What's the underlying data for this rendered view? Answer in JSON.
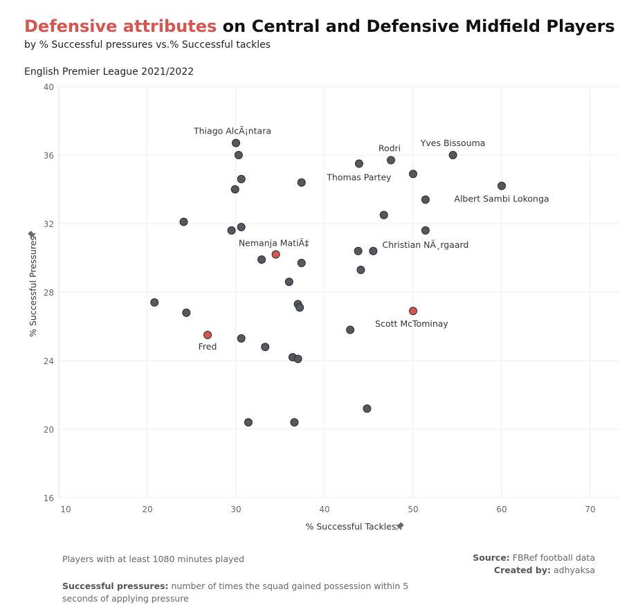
{
  "header": {
    "title_highlight": "Defensive attributes",
    "title_rest": " on Central and Defensive Midfield Players",
    "subtitle": "by % Successful pressures vs.% Successful tackles",
    "league": "English Premier League 2021/2022"
  },
  "footer": {
    "note1": "Players with at least 1080 minutes played",
    "note2_label": "Successful pressures:",
    "note2_text": " number of times the squad gained possession within 5 seconds of applying pressure",
    "source_label": "Source:",
    "source_text": " FBRef football data",
    "created_label": "Created by:",
    "created_text": " adhyaksa"
  },
  "colors": {
    "highlight": "#d9534f",
    "point": "#55585e",
    "grid": "#ececec",
    "axis_text": "#666666"
  },
  "chart_data": {
    "type": "scatter",
    "xlabel": "% Successful Tackles",
    "ylabel": "% Successful Pressures",
    "xlim": [
      10,
      70
    ],
    "ylim": [
      16,
      40
    ],
    "xticks": [
      10,
      20,
      30,
      40,
      50,
      60,
      70
    ],
    "yticks": [
      16,
      20,
      24,
      28,
      32,
      36,
      40
    ],
    "grid": true,
    "points": [
      {
        "x": 30.0,
        "y": 36.7,
        "label": "Thiago AlcÃ¡ntara",
        "highlight": false
      },
      {
        "x": 30.3,
        "y": 36.0,
        "label": "",
        "highlight": false
      },
      {
        "x": 30.6,
        "y": 34.6,
        "label": "",
        "highlight": false
      },
      {
        "x": 29.9,
        "y": 34.0,
        "label": "",
        "highlight": false
      },
      {
        "x": 37.4,
        "y": 34.4,
        "label": "",
        "highlight": false
      },
      {
        "x": 43.9,
        "y": 35.5,
        "label": "Thomas Partey",
        "highlight": false
      },
      {
        "x": 47.5,
        "y": 35.7,
        "label": "Rodri",
        "highlight": false
      },
      {
        "x": 50.0,
        "y": 34.9,
        "label": "",
        "highlight": false
      },
      {
        "x": 54.5,
        "y": 36.0,
        "label": "Yves Bissouma",
        "highlight": false
      },
      {
        "x": 60.0,
        "y": 34.2,
        "label": "Albert Sambi Lokonga",
        "highlight": false
      },
      {
        "x": 51.4,
        "y": 33.4,
        "label": "",
        "highlight": false
      },
      {
        "x": 46.7,
        "y": 32.5,
        "label": "",
        "highlight": false
      },
      {
        "x": 51.4,
        "y": 31.6,
        "label": "Christian NÃ¸rgaard",
        "highlight": false
      },
      {
        "x": 24.1,
        "y": 32.1,
        "label": "",
        "highlight": false
      },
      {
        "x": 29.5,
        "y": 31.6,
        "label": "",
        "highlight": false
      },
      {
        "x": 30.6,
        "y": 31.8,
        "label": "",
        "highlight": false
      },
      {
        "x": 34.5,
        "y": 30.2,
        "label": "Nemanja MatiÄ‡",
        "highlight": true
      },
      {
        "x": 32.9,
        "y": 29.9,
        "label": "",
        "highlight": false
      },
      {
        "x": 37.4,
        "y": 29.7,
        "label": "",
        "highlight": false
      },
      {
        "x": 43.8,
        "y": 30.4,
        "label": "",
        "highlight": false
      },
      {
        "x": 45.5,
        "y": 30.4,
        "label": "",
        "highlight": false
      },
      {
        "x": 44.1,
        "y": 29.3,
        "label": "",
        "highlight": false
      },
      {
        "x": 36.0,
        "y": 28.6,
        "label": "",
        "highlight": false
      },
      {
        "x": 37.0,
        "y": 27.3,
        "label": "",
        "highlight": false
      },
      {
        "x": 37.2,
        "y": 27.1,
        "label": "",
        "highlight": false
      },
      {
        "x": 20.8,
        "y": 27.4,
        "label": "",
        "highlight": false
      },
      {
        "x": 24.4,
        "y": 26.8,
        "label": "",
        "highlight": false
      },
      {
        "x": 50.0,
        "y": 26.9,
        "label": "Scott McTominay",
        "highlight": true
      },
      {
        "x": 42.9,
        "y": 25.8,
        "label": "",
        "highlight": false
      },
      {
        "x": 26.8,
        "y": 25.5,
        "label": "Fred",
        "highlight": true
      },
      {
        "x": 30.6,
        "y": 25.3,
        "label": "",
        "highlight": false
      },
      {
        "x": 33.3,
        "y": 24.8,
        "label": "",
        "highlight": false
      },
      {
        "x": 36.4,
        "y": 24.2,
        "label": "",
        "highlight": false
      },
      {
        "x": 37.0,
        "y": 24.1,
        "label": "",
        "highlight": false
      },
      {
        "x": 44.8,
        "y": 21.2,
        "label": "",
        "highlight": false
      },
      {
        "x": 31.4,
        "y": 20.4,
        "label": "",
        "highlight": false
      },
      {
        "x": 36.6,
        "y": 20.4,
        "label": "",
        "highlight": false
      }
    ]
  }
}
